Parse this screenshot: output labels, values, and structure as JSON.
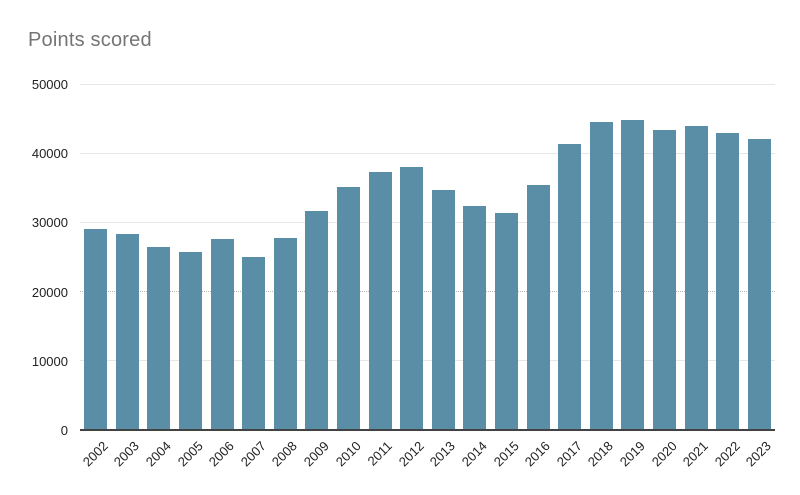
{
  "chart_data": {
    "type": "bar",
    "title": "Points scored",
    "categories": [
      "2002",
      "2003",
      "2004",
      "2005",
      "2006",
      "2007",
      "2008",
      "2009",
      "2010",
      "2011",
      "2012",
      "2013",
      "2014",
      "2015",
      "2016",
      "2017",
      "2018",
      "2019",
      "2020",
      "2021",
      "2022",
      "2023"
    ],
    "values": [
      29000,
      28300,
      26400,
      25700,
      27600,
      25000,
      27700,
      31600,
      35100,
      37300,
      38000,
      34700,
      32400,
      31400,
      35400,
      41400,
      44500,
      44800,
      43300,
      44000,
      42900,
      42000
    ],
    "xlabel": "",
    "ylabel": "",
    "ylim": [
      0,
      50000
    ],
    "yticks": [
      0,
      10000,
      20000,
      30000,
      40000,
      50000
    ],
    "dashed_gridline_value": 20000,
    "grid": true,
    "legend": "none",
    "bar_color": "#5a8da6",
    "title_color": "#757575",
    "axis_label_color": "#222222",
    "gridline_color": "#e6e6e6",
    "dashed_gridline_color": "#b7b7b7",
    "baseline_color": "#424242",
    "background_color": "#ffffff"
  }
}
